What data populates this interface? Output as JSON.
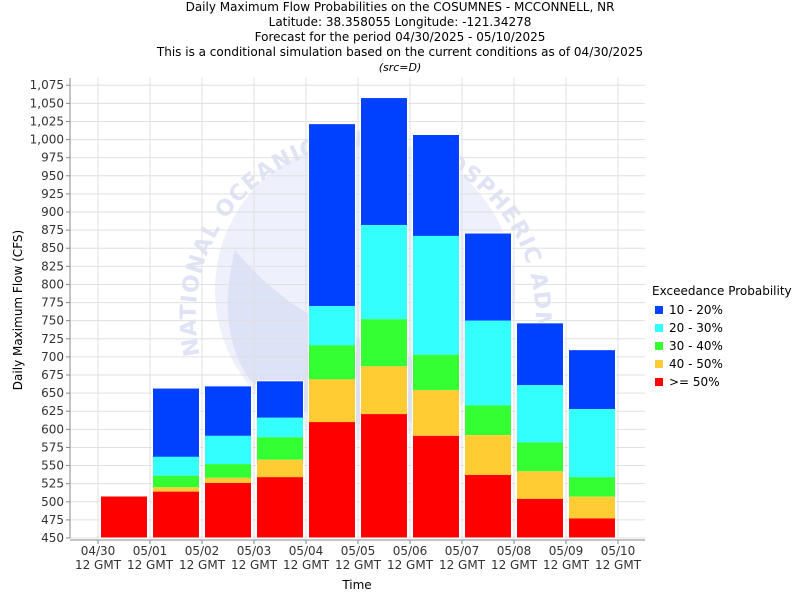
{
  "titles": {
    "line1": "Daily Maximum Flow Probabilities on the COSUMNES - MCCONNELL, NR",
    "line2": "Latitude: 38.358055 Longitude: -121.34278",
    "line3": "Forecast for the period 04/30/2025 - 05/10/2025",
    "line4": "This is a conditional simulation based on the current conditions as of 04/30/2025",
    "line5": "(src=D)"
  },
  "watermark": {
    "text": "NATIONAL OCEANIC AND ATMOSPHERIC ADMINISTRATION"
  },
  "chart_data": {
    "type": "bar",
    "stacked": true,
    "xlabel": "Time",
    "ylabel": "Daily Maximum Flow (CFS)",
    "ylim": [
      450,
      1085
    ],
    "yticks": [
      450,
      475,
      500,
      525,
      550,
      575,
      600,
      625,
      650,
      675,
      700,
      725,
      750,
      775,
      800,
      825,
      850,
      875,
      900,
      925,
      950,
      975,
      1000,
      1025,
      1050,
      1075
    ],
    "xticks": [
      [
        "04/30",
        "12 GMT"
      ],
      [
        "05/01",
        "12 GMT"
      ],
      [
        "05/02",
        "12 GMT"
      ],
      [
        "05/03",
        "12 GMT"
      ],
      [
        "05/04",
        "12 GMT"
      ],
      [
        "05/05",
        "12 GMT"
      ],
      [
        "05/06",
        "12 GMT"
      ],
      [
        "05/07",
        "12 GMT"
      ],
      [
        "05/08",
        "12 GMT"
      ],
      [
        "05/09",
        "12 GMT"
      ],
      [
        "05/10",
        "12 GMT"
      ]
    ],
    "legend_title": "Exceedance Probability",
    "legend_position": "right",
    "grid": true,
    "series": [
      {
        "name": "10 - 20%",
        "color": "#0040ff",
        "tops": [
          508,
          657,
          660,
          667,
          1022,
          1058,
          1007,
          871,
          747,
          710
        ]
      },
      {
        "name": "20 - 30%",
        "color": "#33ffff",
        "tops": [
          508,
          562,
          591,
          616,
          770,
          882,
          867,
          750,
          661,
          628
        ]
      },
      {
        "name": "30 - 40%",
        "color": "#33ff33",
        "tops": [
          508,
          536,
          552,
          589,
          716,
          752,
          703,
          633,
          582,
          534
        ]
      },
      {
        "name": "40 - 50%",
        "color": "#ffcc33",
        "tops": [
          508,
          520,
          533,
          558,
          669,
          687,
          654,
          592,
          542,
          507
        ]
      },
      {
        "name": ">= 50%",
        "color": "#ff0000",
        "tops": [
          508,
          514,
          526,
          534,
          610,
          621,
          591,
          537,
          504,
          477
        ]
      }
    ]
  }
}
